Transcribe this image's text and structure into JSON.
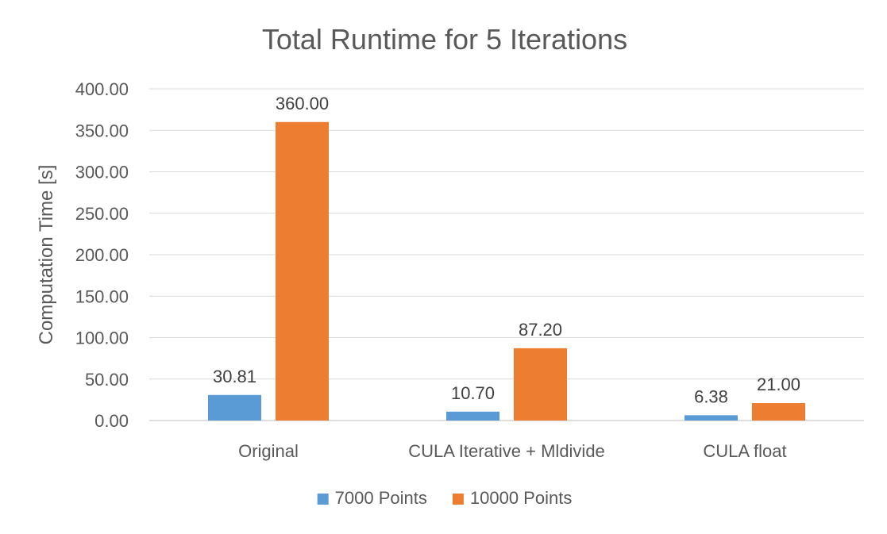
{
  "chart_data": {
    "type": "bar",
    "title": "Total Runtime for 5 Iterations",
    "xlabel": "",
    "ylabel": "Computation Time [s]",
    "ylim": [
      0,
      400
    ],
    "ytick_step": 50,
    "ytick_labels": [
      "0.00",
      "50.00",
      "100.00",
      "150.00",
      "200.00",
      "250.00",
      "300.00",
      "350.00",
      "400.00"
    ],
    "grid": true,
    "legend_position": "bottom",
    "categories": [
      "Original",
      "CULA Iterative + Mldivide",
      "CULA float"
    ],
    "series": [
      {
        "name": "7000 Points",
        "color": "#5b9bd5",
        "values": [
          30.81,
          10.7,
          6.38
        ],
        "labels": [
          "30.81",
          "10.70",
          "6.38"
        ]
      },
      {
        "name": "10000 Points",
        "color": "#ed7d31",
        "values": [
          360.0,
          87.2,
          21.0
        ],
        "labels": [
          "360.00",
          "87.20",
          "21.00"
        ]
      }
    ]
  }
}
